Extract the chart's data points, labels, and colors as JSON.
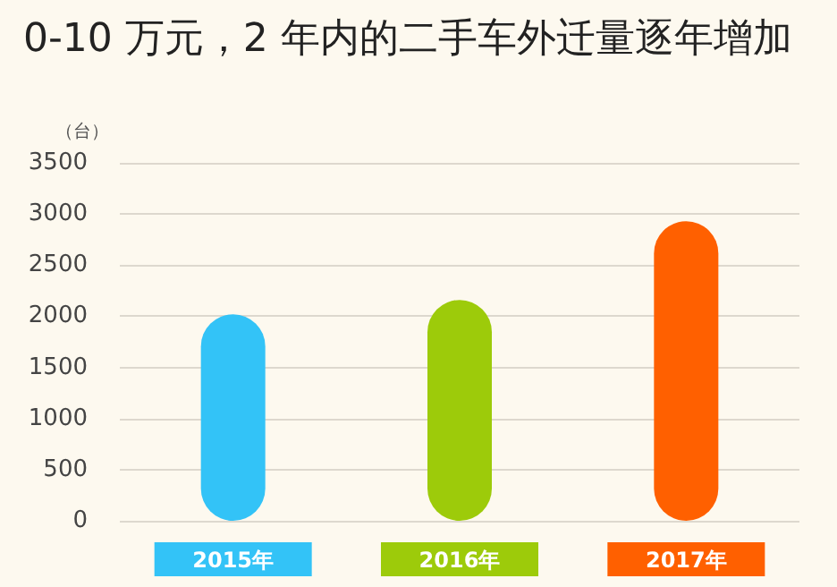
{
  "chart_data": {
    "type": "bar",
    "title": "0-10 万元，2 年内的二手车外迁量逐年增加",
    "ylabel": "（台）",
    "categories": [
      "2015年",
      "2016年",
      "2017年"
    ],
    "values": [
      2020,
      2160,
      2930
    ],
    "colors": [
      "#33c3f7",
      "#9dcb0a",
      "#ff6000"
    ],
    "ylim": [
      0,
      3500
    ],
    "yticks": [
      0,
      500,
      1000,
      1500,
      2000,
      2500,
      3000,
      3500
    ],
    "grid": "y"
  }
}
